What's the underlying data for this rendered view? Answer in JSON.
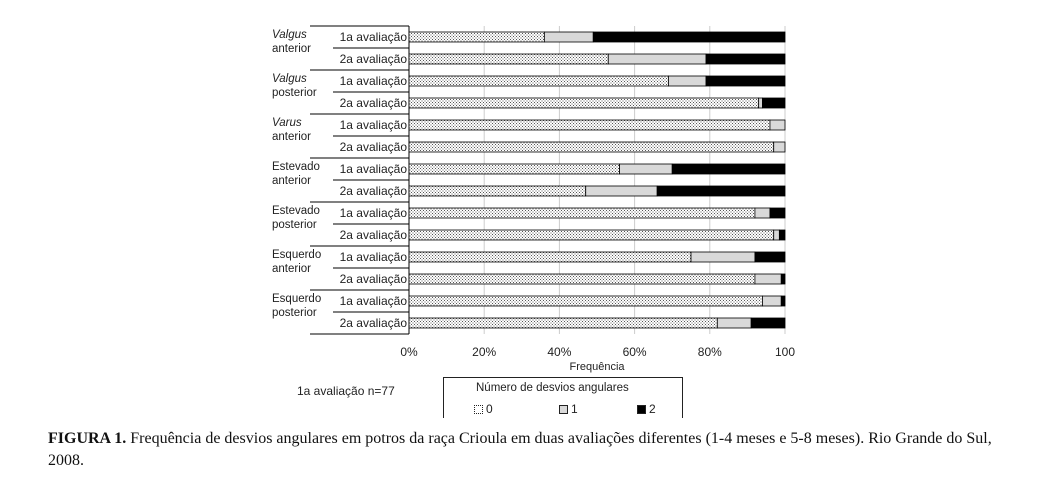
{
  "chart_data": {
    "type": "bar",
    "orientation": "horizontal",
    "stacked": true,
    "xlabel": "Frequência",
    "xlim": [
      0,
      100
    ],
    "xticks": [
      "0%",
      "20%",
      "40%",
      "60%",
      "80%",
      "100"
    ],
    "grid": true,
    "groups": [
      {
        "label": [
          "Valgus",
          "anterior"
        ],
        "italic_first": true
      },
      {
        "label": [
          "Valgus",
          "posterior"
        ],
        "italic_first": true
      },
      {
        "label": [
          "Varus",
          "anterior"
        ],
        "italic_first": true
      },
      {
        "label": [
          "Estevado",
          "anterior"
        ],
        "italic_first": false
      },
      {
        "label": [
          "Estevado",
          "posterior"
        ],
        "italic_first": false
      },
      {
        "label": [
          "Esquerdo",
          "anterior"
        ],
        "italic_first": false
      },
      {
        "label": [
          "Esquerdo",
          "posterior"
        ],
        "italic_first": false
      }
    ],
    "categories": [
      "1a avaliação",
      "2a avaliação"
    ],
    "series": [
      {
        "name": "0",
        "values": [
          [
            36,
            53
          ],
          [
            69,
            93
          ],
          [
            96,
            97
          ],
          [
            56,
            47
          ],
          [
            92,
            97
          ],
          [
            75,
            92
          ],
          [
            94,
            82
          ]
        ]
      },
      {
        "name": "1",
        "values": [
          [
            13,
            26
          ],
          [
            10,
            1
          ],
          [
            4,
            3
          ],
          [
            14,
            19
          ],
          [
            4,
            1.5
          ],
          [
            17,
            7
          ],
          [
            5,
            9
          ]
        ]
      },
      {
        "name": "2",
        "values": [
          [
            51,
            21
          ],
          [
            21,
            6
          ],
          [
            0,
            0
          ],
          [
            30,
            34
          ],
          [
            4,
            1.5
          ],
          [
            8,
            1
          ],
          [
            1,
            9
          ]
        ]
      }
    ],
    "legend": {
      "title": "Número de desvios angulares",
      "entries": [
        "0",
        "1",
        "2"
      ],
      "placement": "bottom"
    },
    "colors": {
      "0": "#ffffff",
      "1": "#d9d9d9",
      "2": "#000000"
    }
  },
  "note": "1a avaliação n=77",
  "caption": {
    "label": "FIGURA 1.",
    "text": " Frequência de desvios angulares em potros da raça Crioula em duas avaliações diferentes (1-4 meses e 5-8 meses). Rio Grande do Sul, 2008."
  }
}
